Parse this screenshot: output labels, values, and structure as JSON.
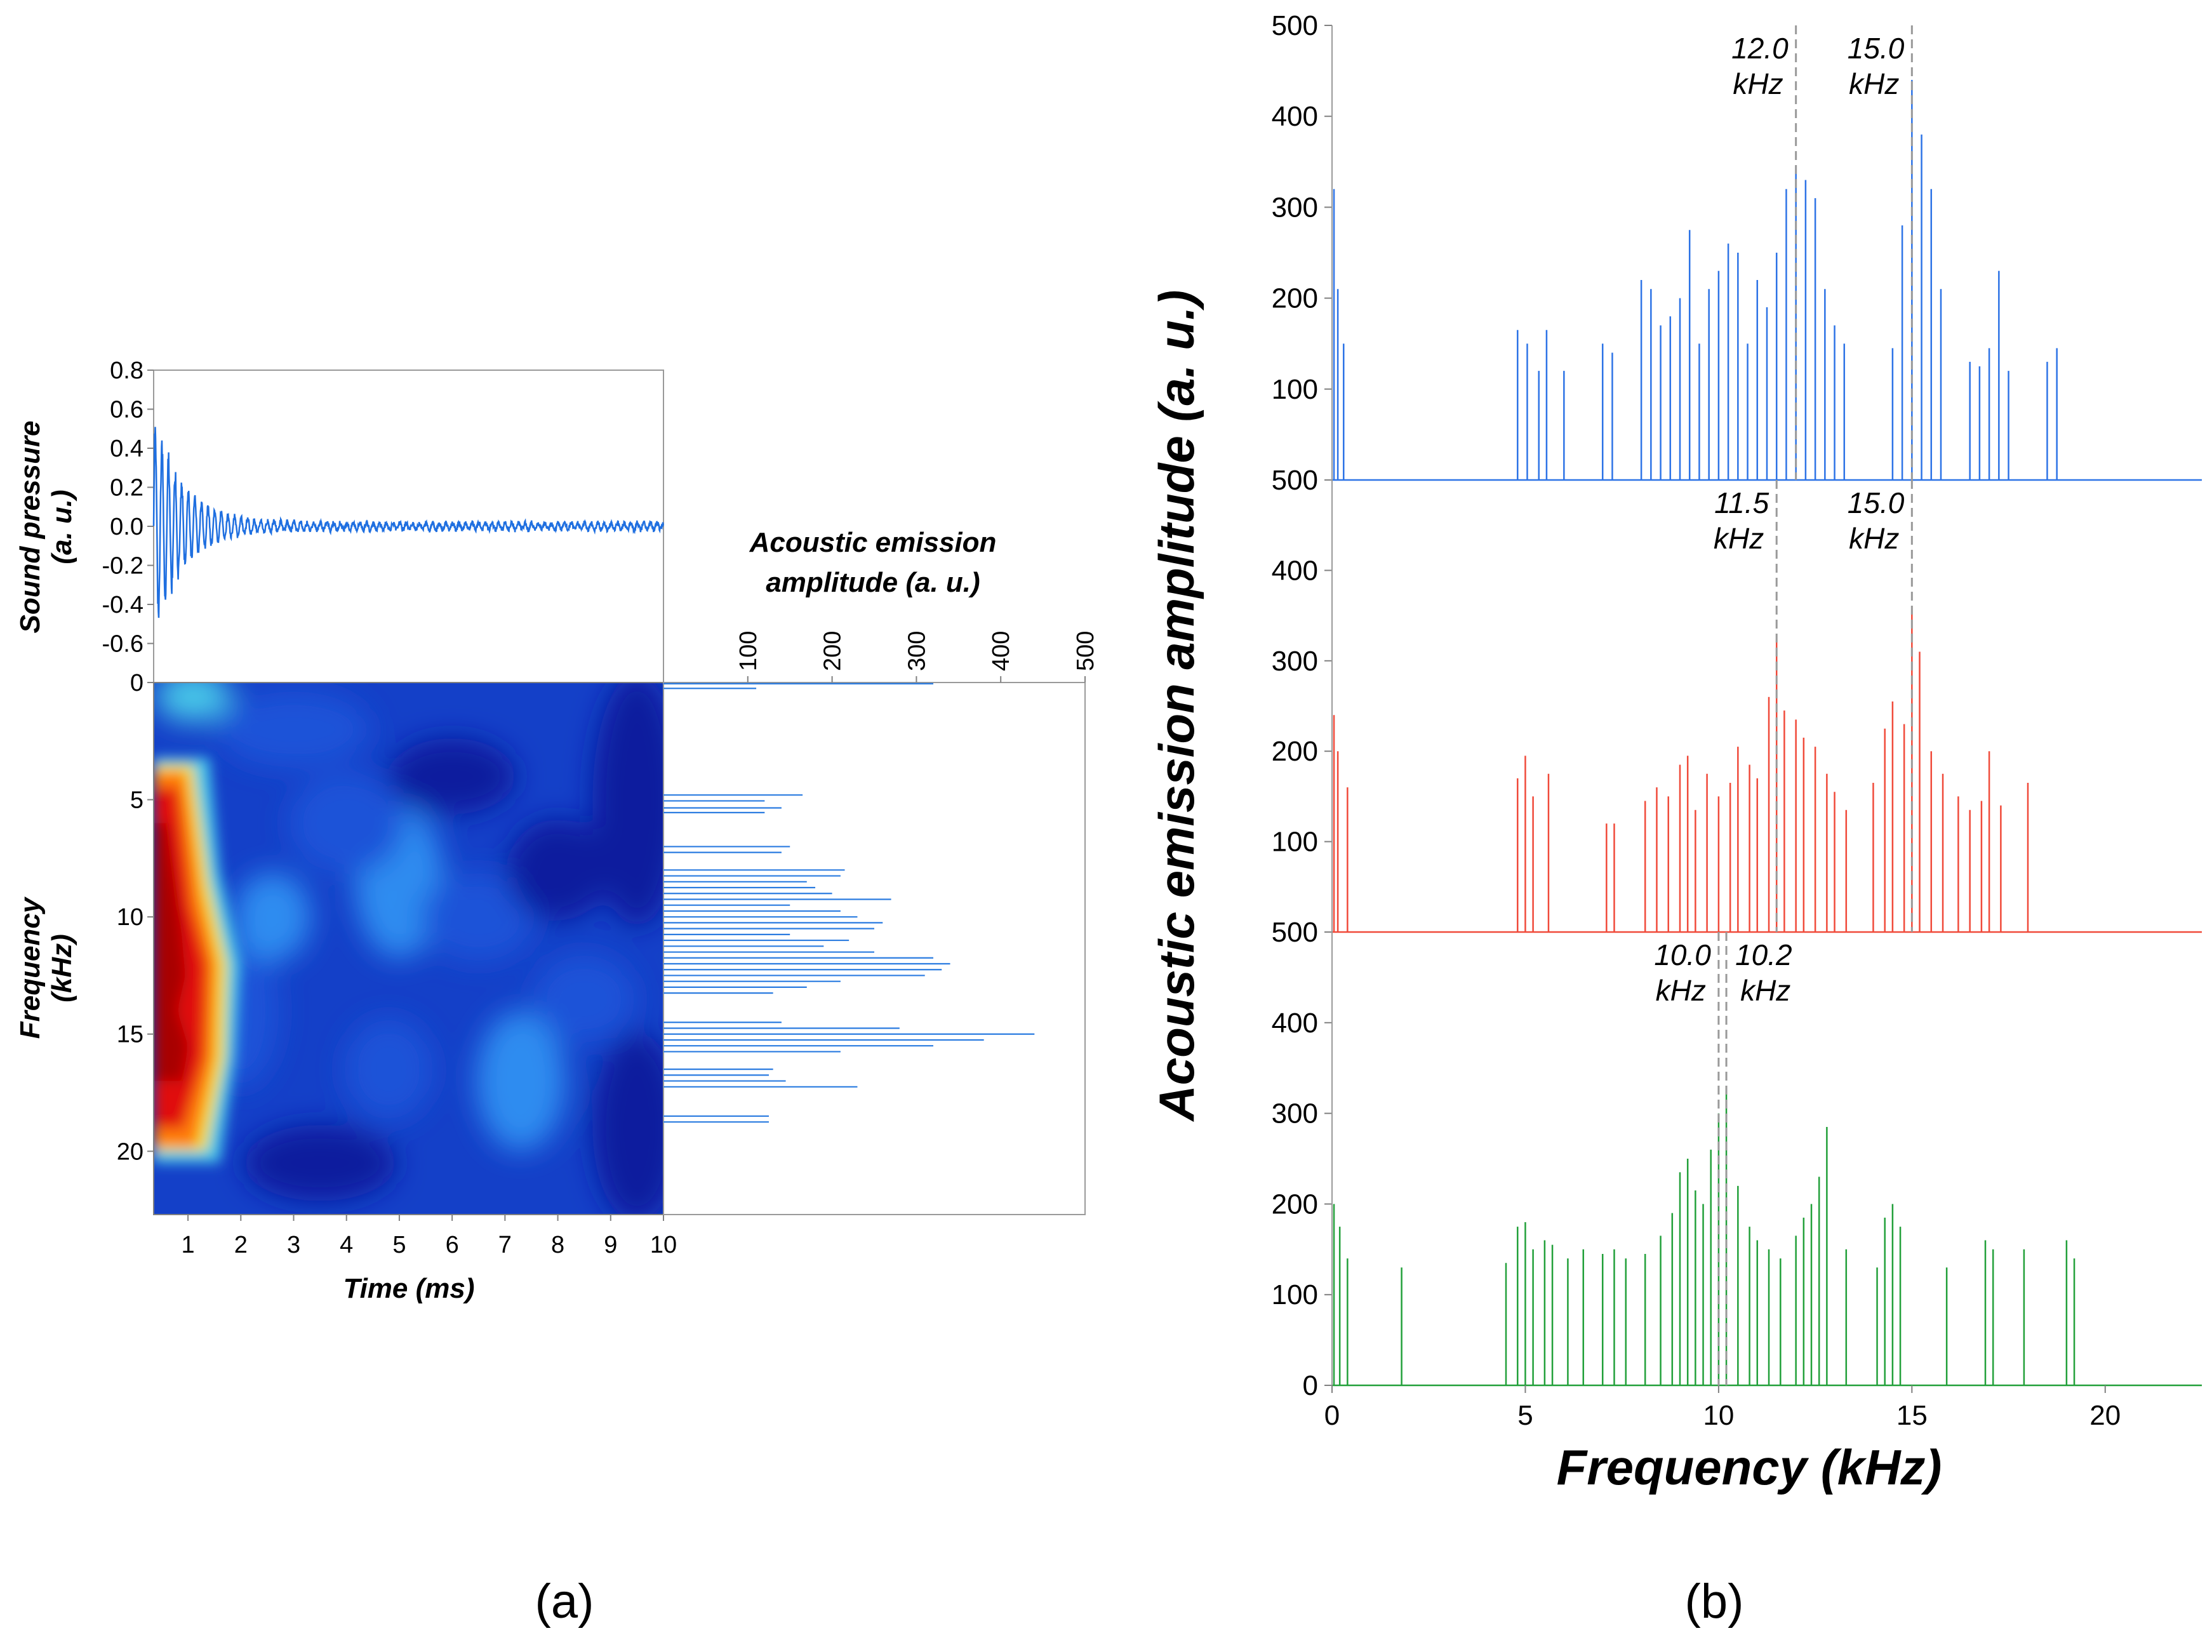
{
  "panel_labels": {
    "a": "(a)",
    "b": "(b)"
  },
  "chart_data": [
    {
      "id": "sound-pressure",
      "type": "line",
      "title": "",
      "xlabel": "",
      "ylabel_line1": "Sound pressure",
      "ylabel_line2": "(a. u.)",
      "xlim": [
        0.35,
        10
      ],
      "ylim": [
        -0.8,
        0.8
      ],
      "yticks": [
        "0.8",
        "0.6",
        "0.4",
        "0.2",
        "0.0",
        "-0.2",
        "-0.4",
        "-0.6"
      ],
      "ytick_values": [
        0.8,
        0.6,
        0.4,
        0.2,
        0.0,
        -0.2,
        -0.4,
        -0.6
      ],
      "color": "#1f6fe0",
      "signal": {
        "peak": 0.62,
        "decay_ms": 0.55,
        "freq_khz": 8,
        "noise": 0.012
      }
    },
    {
      "id": "spectrogram",
      "type": "heatmap",
      "xlabel": "Time (ms)",
      "ylabel_line1": "Frequency",
      "ylabel_line2": "(kHz)",
      "xlim": [
        0.35,
        10
      ],
      "ylim": [
        22.7,
        0
      ],
      "xticks": [
        "1",
        "2",
        "3",
        "4",
        "5",
        "6",
        "7",
        "8",
        "9",
        "10"
      ],
      "xtick_values": [
        1,
        2,
        3,
        4,
        5,
        6,
        7,
        8,
        9,
        10
      ],
      "yticks": [
        "0",
        "5",
        "10",
        "15",
        "20"
      ],
      "ytick_values": [
        0,
        5,
        10,
        15,
        20
      ],
      "hot_region_ms": [
        0.35,
        1.5
      ],
      "hot_band_khz": [
        3.5,
        20
      ],
      "colors": [
        "#0b1e9e",
        "#1a52d8",
        "#2e8cf0",
        "#47c6e8",
        "#f0e030",
        "#ff7a10",
        "#e01010",
        "#a80000"
      ]
    },
    {
      "id": "spectrum-side",
      "type": "bar",
      "orientation": "horizontal",
      "title_line1": "Acoustic emission",
      "title_line2": "amplitude (a. u.)",
      "xticks": [
        "100",
        "200",
        "300",
        "400",
        "500"
      ],
      "xtick_values": [
        100,
        200,
        300,
        400,
        500
      ],
      "xlim": [
        0,
        500
      ],
      "ylim": [
        0,
        22.7
      ],
      "color": "#2a7be0",
      "bars": [
        {
          "f": 0.05,
          "a": 320
        },
        {
          "f": 0.25,
          "a": 110
        },
        {
          "f": 4.8,
          "a": 165
        },
        {
          "f": 5.05,
          "a": 120
        },
        {
          "f": 5.35,
          "a": 140
        },
        {
          "f": 5.55,
          "a": 120
        },
        {
          "f": 7.0,
          "a": 150
        },
        {
          "f": 7.25,
          "a": 140
        },
        {
          "f": 8.0,
          "a": 215
        },
        {
          "f": 8.25,
          "a": 210
        },
        {
          "f": 8.5,
          "a": 170
        },
        {
          "f": 8.75,
          "a": 180
        },
        {
          "f": 9.0,
          "a": 200
        },
        {
          "f": 9.25,
          "a": 270
        },
        {
          "f": 9.5,
          "a": 150
        },
        {
          "f": 9.75,
          "a": 210
        },
        {
          "f": 10.0,
          "a": 230
        },
        {
          "f": 10.25,
          "a": 260
        },
        {
          "f": 10.5,
          "a": 250
        },
        {
          "f": 10.75,
          "a": 150
        },
        {
          "f": 11.0,
          "a": 220
        },
        {
          "f": 11.25,
          "a": 190
        },
        {
          "f": 11.5,
          "a": 250
        },
        {
          "f": 11.75,
          "a": 320
        },
        {
          "f": 12.0,
          "a": 340
        },
        {
          "f": 12.25,
          "a": 330
        },
        {
          "f": 12.5,
          "a": 310
        },
        {
          "f": 12.75,
          "a": 210
        },
        {
          "f": 13.0,
          "a": 170
        },
        {
          "f": 13.25,
          "a": 130
        },
        {
          "f": 14.5,
          "a": 140
        },
        {
          "f": 14.75,
          "a": 280
        },
        {
          "f": 15.0,
          "a": 440
        },
        {
          "f": 15.25,
          "a": 380
        },
        {
          "f": 15.5,
          "a": 320
        },
        {
          "f": 15.75,
          "a": 210
        },
        {
          "f": 16.5,
          "a": 130
        },
        {
          "f": 16.75,
          "a": 125
        },
        {
          "f": 17.0,
          "a": 145
        },
        {
          "f": 17.25,
          "a": 230
        },
        {
          "f": 18.5,
          "a": 125
        },
        {
          "f": 18.75,
          "a": 125
        }
      ]
    },
    {
      "id": "spectra-stacked",
      "type": "bar",
      "xlabel": "Frequency (kHz)",
      "ylabel": "Acoustic emission amplitude (a. u.)",
      "xlim": [
        0,
        22.5
      ],
      "xticks": [
        "0",
        "5",
        "10",
        "15",
        "20"
      ],
      "xtick_values": [
        0,
        5,
        10,
        15,
        20
      ],
      "ylim": [
        0,
        500
      ],
      "panels": [
        {
          "name": "top",
          "color": "#2d73e6",
          "yticks": [
            "500",
            "400",
            "300",
            "200",
            "100"
          ],
          "ytick_values": [
            500,
            400,
            300,
            200,
            100
          ],
          "markers": [
            {
              "x": 12.0,
              "label1": "12.0",
              "label2": "kHz"
            },
            {
              "x": 15.0,
              "label1": "15.0",
              "label2": "kHz"
            }
          ],
          "bars": [
            {
              "f": 0.05,
              "a": 320
            },
            {
              "f": 0.15,
              "a": 210
            },
            {
              "f": 0.3,
              "a": 150
            },
            {
              "f": 4.8,
              "a": 165
            },
            {
              "f": 5.05,
              "a": 150
            },
            {
              "f": 5.35,
              "a": 120
            },
            {
              "f": 5.55,
              "a": 165
            },
            {
              "f": 6.0,
              "a": 120
            },
            {
              "f": 7.0,
              "a": 150
            },
            {
              "f": 7.25,
              "a": 140
            },
            {
              "f": 8.0,
              "a": 220
            },
            {
              "f": 8.25,
              "a": 210
            },
            {
              "f": 8.5,
              "a": 170
            },
            {
              "f": 8.75,
              "a": 180
            },
            {
              "f": 9.0,
              "a": 200
            },
            {
              "f": 9.25,
              "a": 275
            },
            {
              "f": 9.5,
              "a": 150
            },
            {
              "f": 9.75,
              "a": 210
            },
            {
              "f": 10.0,
              "a": 230
            },
            {
              "f": 10.25,
              "a": 260
            },
            {
              "f": 10.5,
              "a": 250
            },
            {
              "f": 10.75,
              "a": 150
            },
            {
              "f": 11.0,
              "a": 220
            },
            {
              "f": 11.25,
              "a": 190
            },
            {
              "f": 11.5,
              "a": 250
            },
            {
              "f": 11.75,
              "a": 320
            },
            {
              "f": 12.0,
              "a": 345
            },
            {
              "f": 12.25,
              "a": 330
            },
            {
              "f": 12.5,
              "a": 310
            },
            {
              "f": 12.75,
              "a": 210
            },
            {
              "f": 13.0,
              "a": 170
            },
            {
              "f": 13.25,
              "a": 150
            },
            {
              "f": 14.5,
              "a": 145
            },
            {
              "f": 14.75,
              "a": 280
            },
            {
              "f": 15.0,
              "a": 440
            },
            {
              "f": 15.25,
              "a": 380
            },
            {
              "f": 15.5,
              "a": 320
            },
            {
              "f": 15.75,
              "a": 210
            },
            {
              "f": 16.5,
              "a": 130
            },
            {
              "f": 16.75,
              "a": 125
            },
            {
              "f": 17.0,
              "a": 145
            },
            {
              "f": 17.25,
              "a": 230
            },
            {
              "f": 17.5,
              "a": 120
            },
            {
              "f": 18.5,
              "a": 130
            },
            {
              "f": 18.75,
              "a": 145
            }
          ]
        },
        {
          "name": "middle",
          "color": "#f04a3a",
          "yticks": [
            "500",
            "400",
            "300",
            "200",
            "100"
          ],
          "ytick_values": [
            500,
            400,
            300,
            200,
            100
          ],
          "markers": [
            {
              "x": 11.5,
              "label1": "11.5",
              "label2": "kHz"
            },
            {
              "x": 15.0,
              "label1": "15.0",
              "label2": "kHz"
            }
          ],
          "bars": [
            {
              "f": 0.05,
              "a": 240
            },
            {
              "f": 0.15,
              "a": 200
            },
            {
              "f": 0.4,
              "a": 160
            },
            {
              "f": 4.8,
              "a": 170
            },
            {
              "f": 5.0,
              "a": 195
            },
            {
              "f": 5.2,
              "a": 150
            },
            {
              "f": 5.6,
              "a": 175
            },
            {
              "f": 7.1,
              "a": 120
            },
            {
              "f": 7.3,
              "a": 120
            },
            {
              "f": 8.1,
              "a": 145
            },
            {
              "f": 8.4,
              "a": 160
            },
            {
              "f": 8.7,
              "a": 150
            },
            {
              "f": 9.0,
              "a": 185
            },
            {
              "f": 9.2,
              "a": 195
            },
            {
              "f": 9.4,
              "a": 135
            },
            {
              "f": 9.7,
              "a": 175
            },
            {
              "f": 10.0,
              "a": 150
            },
            {
              "f": 10.3,
              "a": 165
            },
            {
              "f": 10.5,
              "a": 205
            },
            {
              "f": 10.8,
              "a": 185
            },
            {
              "f": 11.0,
              "a": 170
            },
            {
              "f": 11.3,
              "a": 260
            },
            {
              "f": 11.5,
              "a": 325
            },
            {
              "f": 11.7,
              "a": 245
            },
            {
              "f": 12.0,
              "a": 235
            },
            {
              "f": 12.2,
              "a": 215
            },
            {
              "f": 12.5,
              "a": 205
            },
            {
              "f": 12.8,
              "a": 175
            },
            {
              "f": 13.0,
              "a": 155
            },
            {
              "f": 13.3,
              "a": 135
            },
            {
              "f": 14.0,
              "a": 165
            },
            {
              "f": 14.3,
              "a": 225
            },
            {
              "f": 14.5,
              "a": 255
            },
            {
              "f": 14.8,
              "a": 230
            },
            {
              "f": 15.0,
              "a": 360
            },
            {
              "f": 15.2,
              "a": 310
            },
            {
              "f": 15.5,
              "a": 200
            },
            {
              "f": 15.8,
              "a": 175
            },
            {
              "f": 16.2,
              "a": 150
            },
            {
              "f": 16.5,
              "a": 135
            },
            {
              "f": 16.8,
              "a": 145
            },
            {
              "f": 17.0,
              "a": 200
            },
            {
              "f": 17.3,
              "a": 140
            },
            {
              "f": 18.0,
              "a": 165
            }
          ]
        },
        {
          "name": "bottom",
          "color": "#22a03a",
          "yticks": [
            "500",
            "400",
            "300",
            "200",
            "100",
            "0"
          ],
          "ytick_values": [
            500,
            400,
            300,
            200,
            100,
            0
          ],
          "markers": [
            {
              "x": 10.0,
              "label1": "10.0",
              "label2": "kHz"
            },
            {
              "x": 10.2,
              "label1": "10.2",
              "label2": "kHz"
            }
          ],
          "bars": [
            {
              "f": 0.05,
              "a": 200
            },
            {
              "f": 0.2,
              "a": 175
            },
            {
              "f": 0.4,
              "a": 140
            },
            {
              "f": 1.8,
              "a": 130
            },
            {
              "f": 4.5,
              "a": 135
            },
            {
              "f": 4.8,
              "a": 175
            },
            {
              "f": 5.0,
              "a": 180
            },
            {
              "f": 5.2,
              "a": 150
            },
            {
              "f": 5.5,
              "a": 160
            },
            {
              "f": 5.7,
              "a": 155
            },
            {
              "f": 6.1,
              "a": 140
            },
            {
              "f": 6.5,
              "a": 150
            },
            {
              "f": 7.0,
              "a": 145
            },
            {
              "f": 7.3,
              "a": 150
            },
            {
              "f": 7.6,
              "a": 140
            },
            {
              "f": 8.1,
              "a": 145
            },
            {
              "f": 8.5,
              "a": 165
            },
            {
              "f": 8.8,
              "a": 190
            },
            {
              "f": 9.0,
              "a": 235
            },
            {
              "f": 9.2,
              "a": 250
            },
            {
              "f": 9.4,
              "a": 215
            },
            {
              "f": 9.6,
              "a": 200
            },
            {
              "f": 9.8,
              "a": 260
            },
            {
              "f": 10.0,
              "a": 300
            },
            {
              "f": 10.2,
              "a": 330
            },
            {
              "f": 10.5,
              "a": 220
            },
            {
              "f": 10.8,
              "a": 175
            },
            {
              "f": 11.0,
              "a": 160
            },
            {
              "f": 11.3,
              "a": 150
            },
            {
              "f": 11.6,
              "a": 140
            },
            {
              "f": 12.0,
              "a": 165
            },
            {
              "f": 12.2,
              "a": 185
            },
            {
              "f": 12.4,
              "a": 200
            },
            {
              "f": 12.6,
              "a": 230
            },
            {
              "f": 12.8,
              "a": 285
            },
            {
              "f": 13.3,
              "a": 150
            },
            {
              "f": 14.1,
              "a": 130
            },
            {
              "f": 14.3,
              "a": 185
            },
            {
              "f": 14.5,
              "a": 200
            },
            {
              "f": 14.7,
              "a": 175
            },
            {
              "f": 15.9,
              "a": 130
            },
            {
              "f": 16.9,
              "a": 160
            },
            {
              "f": 17.1,
              "a": 150
            },
            {
              "f": 17.9,
              "a": 150
            },
            {
              "f": 19.0,
              "a": 160
            },
            {
              "f": 19.2,
              "a": 140
            }
          ]
        }
      ]
    }
  ]
}
